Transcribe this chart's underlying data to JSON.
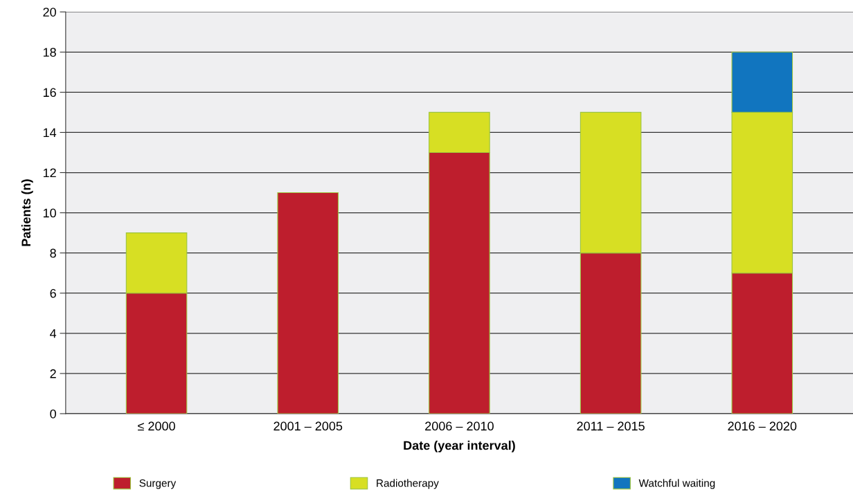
{
  "chart_data": {
    "type": "bar",
    "stacked": true,
    "categories": [
      "≤ 2000",
      "2001 – 2005",
      "2006 – 2010",
      "2011 – 2015",
      "2016 – 2020"
    ],
    "series": [
      {
        "name": "Surgery",
        "color": "#be1e2d",
        "values": [
          6,
          11,
          13,
          8,
          7
        ]
      },
      {
        "name": "Radiotherapy",
        "color": "#d7df23",
        "values": [
          3,
          null,
          2,
          7,
          8
        ]
      },
      {
        "name": "Watchful waiting",
        "color": "#1175bf",
        "values": [
          null,
          null,
          null,
          null,
          3
        ]
      }
    ],
    "xlabel": "Date (year interval)",
    "ylabel": "Patients (n)",
    "ylim": [
      0,
      20
    ],
    "yticks": [
      0,
      2,
      4,
      6,
      8,
      10,
      12,
      14,
      16,
      18,
      20
    ],
    "grid": "y",
    "legend": "bottom"
  }
}
